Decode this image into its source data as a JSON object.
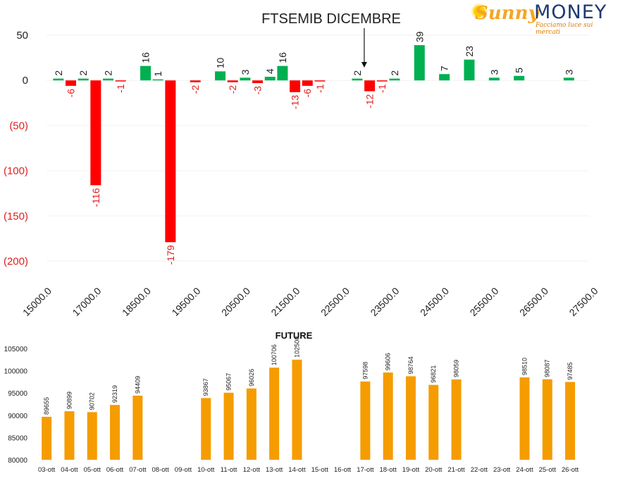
{
  "logo": {
    "sunny": "Sunny",
    "money": "MONEY",
    "tagline": "Facciamo luce sui mercati"
  },
  "chart_data": [
    {
      "type": "bar",
      "title": "FTSEMIB DICEMBRE",
      "ylim": [
        -200,
        50
      ],
      "yticks": [
        "50",
        "0",
        "(50)",
        "(100)",
        "(150)",
        "(200)"
      ],
      "xticks": [
        "15000.0",
        "17000.0",
        "18500.0",
        "19500.0",
        "20500.0",
        "21500.0",
        "22500.0",
        "23500.0",
        "24500.0",
        "25500.0",
        "26500.0",
        "27500.0"
      ],
      "grid": true,
      "colors": {
        "positive": "#00b050",
        "negative": "#ff0000",
        "neg_label": "#e02020"
      },
      "bars": [
        {
          "i": 0,
          "value": 2
        },
        {
          "i": 1,
          "value": -6
        },
        {
          "i": 2,
          "value": 2
        },
        {
          "i": 3,
          "value": -116
        },
        {
          "i": 4,
          "value": 2
        },
        {
          "i": 5,
          "value": -1
        },
        {
          "i": 7,
          "value": 16
        },
        {
          "i": 8,
          "value": 1
        },
        {
          "i": 9,
          "value": -179
        },
        {
          "i": 11,
          "value": -2
        },
        {
          "i": 13,
          "value": 10
        },
        {
          "i": 14,
          "value": -2
        },
        {
          "i": 15,
          "value": 3
        },
        {
          "i": 16,
          "value": -3
        },
        {
          "i": 17,
          "value": 4
        },
        {
          "i": 18,
          "value": 16
        },
        {
          "i": 19,
          "value": -13
        },
        {
          "i": 20,
          "value": -6
        },
        {
          "i": 21,
          "value": -1
        },
        {
          "i": 24,
          "value": 2
        },
        {
          "i": 25,
          "value": -12
        },
        {
          "i": 26,
          "value": -1
        },
        {
          "i": 27,
          "value": 2
        },
        {
          "i": 29,
          "value": 39
        },
        {
          "i": 31,
          "value": 7
        },
        {
          "i": 33,
          "value": 23
        },
        {
          "i": 35,
          "value": 3
        },
        {
          "i": 37,
          "value": 5
        },
        {
          "i": 41,
          "value": 3
        }
      ],
      "annotation": {
        "text": "FTSEMIB DICEMBRE",
        "arrow_to_bar": 24
      }
    },
    {
      "type": "bar",
      "title": "FUTURE",
      "ylim": [
        80000,
        105000
      ],
      "yticks": [
        "105000",
        "100000",
        "95000",
        "90000",
        "85000",
        "80000"
      ],
      "color": "#f59c00",
      "categories": [
        "03-ott",
        "04-ott",
        "05-ott",
        "06-ott",
        "07-ott",
        "08-ott",
        "09-ott",
        "10-ott",
        "11-ott",
        "12-ott",
        "13-ott",
        "14-ott",
        "15-ott",
        "16-ott",
        "17-ott",
        "18-ott",
        "19-ott",
        "20-ott",
        "21-ott",
        "22-ott",
        "23-ott",
        "24-ott",
        "25-ott",
        "26-ott"
      ],
      "values": [
        89655,
        90899,
        90702,
        92319,
        94409,
        null,
        null,
        93867,
        95067,
        96026,
        100706,
        102500,
        null,
        null,
        97598,
        99606,
        98764,
        96821,
        98059,
        null,
        null,
        98510,
        98087,
        97485
      ],
      "value_labels": [
        "89655",
        "90899",
        "90702",
        "92319",
        "94409",
        "",
        "",
        "93867",
        "95067",
        "96026",
        "100706",
        "102500",
        "",
        "",
        "97598",
        "99606",
        "98764",
        "96821",
        "98059",
        "",
        "",
        "98510",
        "98087",
        "97485"
      ]
    }
  ]
}
